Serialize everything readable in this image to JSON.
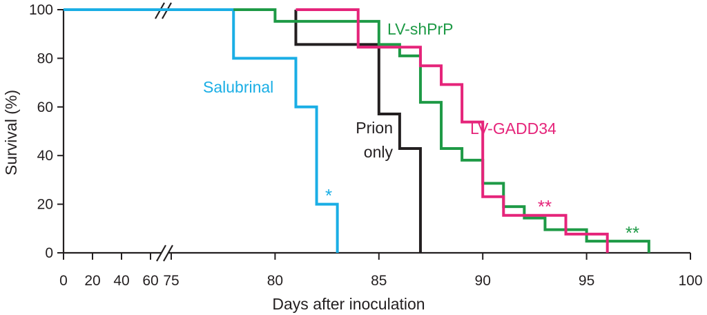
{
  "chart_data": {
    "type": "line",
    "step": true,
    "xlabel": "Days after inoculation",
    "ylabel": "Survival (%)",
    "ylim": [
      0,
      100
    ],
    "yticks": [
      0,
      20,
      40,
      60,
      80,
      100
    ],
    "x_axis_broken": true,
    "xticks_before_break": [
      0,
      20,
      40,
      60
    ],
    "xticks_after_break": [
      75,
      80,
      85,
      90,
      95,
      100
    ],
    "xlim_after_break": [
      75,
      100
    ],
    "grid": false,
    "series": [
      {
        "name": "Salubrinal",
        "color": "#1aaee5",
        "x": [
          0,
          78,
          78,
          81,
          81,
          82,
          82,
          83,
          83
        ],
        "y": [
          100,
          100,
          80,
          80,
          60,
          60,
          20,
          20,
          0
        ],
        "annotation": "*"
      },
      {
        "name": "Prion only",
        "label_lines": [
          "Prion",
          "only"
        ],
        "color": "#231f20",
        "x": [
          81,
          81,
          85,
          85,
          86,
          86,
          87,
          87
        ],
        "y": [
          100,
          85.7,
          85.7,
          57.1,
          57.1,
          42.9,
          42.9,
          0
        ],
        "annotation": ""
      },
      {
        "name": "LV-shPrP",
        "color": "#1e9a46",
        "x": [
          78,
          80,
          80,
          85,
          85,
          86,
          86,
          87,
          87,
          88,
          88,
          89,
          89,
          90,
          90,
          91,
          91,
          92,
          92,
          93,
          93,
          94,
          94,
          95,
          95,
          96,
          96,
          98,
          98
        ],
        "y": [
          100,
          100,
          95.2,
          95.2,
          85.7,
          85.7,
          81,
          81,
          61.9,
          61.9,
          42.9,
          42.9,
          38.1,
          38.1,
          28.6,
          28.6,
          19,
          19,
          14.3,
          14.3,
          9.5,
          9.5,
          9.5,
          9.5,
          4.8,
          4.8,
          4.8,
          4.8,
          0
        ],
        "annotation": "**"
      },
      {
        "name": "LV-GADD34",
        "color": "#e5247a",
        "x": [
          81,
          84,
          84,
          87,
          87,
          88,
          88,
          89,
          89,
          90,
          90,
          91,
          91,
          92,
          92,
          94,
          94,
          96,
          96
        ],
        "y": [
          100,
          100,
          84.6,
          84.6,
          76.9,
          76.9,
          69.2,
          69.2,
          53.8,
          53.8,
          23.1,
          23.1,
          15.4,
          15.4,
          15.4,
          15.4,
          7.7,
          7.7,
          0
        ],
        "annotation": "**"
      }
    ]
  }
}
